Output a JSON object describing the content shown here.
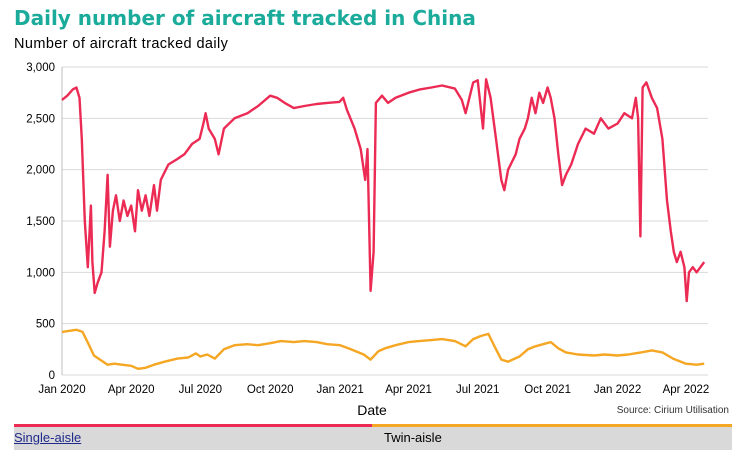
{
  "title": "Daily number of aircraft tracked in China",
  "subtitle": "Number of aircraft tracked daily",
  "source": "Source: Cirium Utilisation",
  "colors": {
    "title": "#1aab9b",
    "single_aisle": "#ec2b54",
    "twin_aisle": "#f5a623",
    "legend_bg": "#d9d9d9"
  },
  "chart_data": {
    "type": "line",
    "title": "Daily number of aircraft tracked in China",
    "subtitle": "Number of aircraft tracked daily",
    "xlabel": "Date",
    "ylabel": "",
    "ylim": [
      0,
      3000
    ],
    "yticks": [
      "0",
      "500",
      "1,000",
      "1,500",
      "2,000",
      "2,500",
      "3,000"
    ],
    "xlim": [
      "2020-01-01",
      "2022-04-30"
    ],
    "xticks": [
      "Jan 2020",
      "Apr 2020",
      "Jul 2020",
      "Oct 2020",
      "Jan 2021",
      "Apr 2021",
      "Jul 2021",
      "Oct 2021",
      "Jan 2022",
      "Apr 2022"
    ],
    "grid": "horizontal",
    "legend": "bottom",
    "series": [
      {
        "name": "Single-aisle",
        "color": "#ec2b54",
        "points": [
          [
            "2020-01-01",
            2680
          ],
          [
            "2020-01-08",
            2720
          ],
          [
            "2020-01-15",
            2780
          ],
          [
            "2020-01-20",
            2800
          ],
          [
            "2020-01-24",
            2700
          ],
          [
            "2020-01-27",
            2300
          ],
          [
            "2020-01-31",
            1500
          ],
          [
            "2020-02-04",
            1050
          ],
          [
            "2020-02-08",
            1650
          ],
          [
            "2020-02-10",
            1100
          ],
          [
            "2020-02-13",
            800
          ],
          [
            "2020-02-17",
            900
          ],
          [
            "2020-02-22",
            1000
          ],
          [
            "2020-02-26",
            1400
          ],
          [
            "2020-03-01",
            1950
          ],
          [
            "2020-03-04",
            1250
          ],
          [
            "2020-03-08",
            1600
          ],
          [
            "2020-03-12",
            1750
          ],
          [
            "2020-03-17",
            1500
          ],
          [
            "2020-03-22",
            1700
          ],
          [
            "2020-03-27",
            1550
          ],
          [
            "2020-04-01",
            1650
          ],
          [
            "2020-04-06",
            1400
          ],
          [
            "2020-04-10",
            1800
          ],
          [
            "2020-04-15",
            1600
          ],
          [
            "2020-04-20",
            1750
          ],
          [
            "2020-04-25",
            1550
          ],
          [
            "2020-05-01",
            1850
          ],
          [
            "2020-05-05",
            1600
          ],
          [
            "2020-05-10",
            1900
          ],
          [
            "2020-05-20",
            2050
          ],
          [
            "2020-05-31",
            2100
          ],
          [
            "2020-06-10",
            2150
          ],
          [
            "2020-06-20",
            2250
          ],
          [
            "2020-06-30",
            2300
          ],
          [
            "2020-07-05",
            2450
          ],
          [
            "2020-07-08",
            2550
          ],
          [
            "2020-07-12",
            2400
          ],
          [
            "2020-07-20",
            2300
          ],
          [
            "2020-07-25",
            2150
          ],
          [
            "2020-08-01",
            2400
          ],
          [
            "2020-08-15",
            2500
          ],
          [
            "2020-09-01",
            2550
          ],
          [
            "2020-09-15",
            2620
          ],
          [
            "2020-10-01",
            2720
          ],
          [
            "2020-10-10",
            2700
          ],
          [
            "2020-10-20",
            2650
          ],
          [
            "2020-11-01",
            2600
          ],
          [
            "2020-11-15",
            2620
          ],
          [
            "2020-12-01",
            2640
          ],
          [
            "2020-12-15",
            2650
          ],
          [
            "2020-12-31",
            2660
          ],
          [
            "2021-01-05",
            2700
          ],
          [
            "2021-01-10",
            2580
          ],
          [
            "2021-01-20",
            2400
          ],
          [
            "2021-01-28",
            2200
          ],
          [
            "2021-02-03",
            1900
          ],
          [
            "2021-02-06",
            2200
          ],
          [
            "2021-02-10",
            820
          ],
          [
            "2021-02-14",
            1200
          ],
          [
            "2021-02-17",
            2650
          ],
          [
            "2021-02-25",
            2720
          ],
          [
            "2021-03-05",
            2650
          ],
          [
            "2021-03-15",
            2700
          ],
          [
            "2021-04-01",
            2750
          ],
          [
            "2021-04-15",
            2780
          ],
          [
            "2021-05-01",
            2800
          ],
          [
            "2021-05-15",
            2820
          ],
          [
            "2021-06-01",
            2790
          ],
          [
            "2021-06-10",
            2680
          ],
          [
            "2021-06-15",
            2550
          ],
          [
            "2021-06-20",
            2700
          ],
          [
            "2021-06-25",
            2850
          ],
          [
            "2021-07-01",
            2870
          ],
          [
            "2021-07-05",
            2600
          ],
          [
            "2021-07-08",
            2400
          ],
          [
            "2021-07-12",
            2880
          ],
          [
            "2021-07-18",
            2700
          ],
          [
            "2021-07-25",
            2300
          ],
          [
            "2021-08-01",
            1900
          ],
          [
            "2021-08-05",
            1800
          ],
          [
            "2021-08-10",
            2000
          ],
          [
            "2021-08-20",
            2150
          ],
          [
            "2021-08-25",
            2300
          ],
          [
            "2021-09-01",
            2400
          ],
          [
            "2021-09-05",
            2500
          ],
          [
            "2021-09-10",
            2700
          ],
          [
            "2021-09-15",
            2550
          ],
          [
            "2021-09-20",
            2750
          ],
          [
            "2021-09-25",
            2650
          ],
          [
            "2021-10-01",
            2800
          ],
          [
            "2021-10-05",
            2700
          ],
          [
            "2021-10-10",
            2500
          ],
          [
            "2021-10-15",
            2150
          ],
          [
            "2021-10-20",
            1850
          ],
          [
            "2021-10-25",
            1950
          ],
          [
            "2021-11-01",
            2050
          ],
          [
            "2021-11-10",
            2250
          ],
          [
            "2021-11-20",
            2400
          ],
          [
            "2021-12-01",
            2350
          ],
          [
            "2021-12-10",
            2500
          ],
          [
            "2021-12-20",
            2400
          ],
          [
            "2022-01-01",
            2450
          ],
          [
            "2022-01-10",
            2550
          ],
          [
            "2022-01-20",
            2500
          ],
          [
            "2022-01-25",
            2700
          ],
          [
            "2022-01-28",
            2500
          ],
          [
            "2022-01-31",
            1350
          ],
          [
            "2022-02-03",
            2800
          ],
          [
            "2022-02-08",
            2850
          ],
          [
            "2022-02-15",
            2700
          ],
          [
            "2022-02-22",
            2600
          ],
          [
            "2022-03-01",
            2300
          ],
          [
            "2022-03-07",
            1700
          ],
          [
            "2022-03-12",
            1400
          ],
          [
            "2022-03-16",
            1200
          ],
          [
            "2022-03-20",
            1100
          ],
          [
            "2022-03-25",
            1200
          ],
          [
            "2022-03-30",
            1050
          ],
          [
            "2022-04-02",
            720
          ],
          [
            "2022-04-05",
            1000
          ],
          [
            "2022-04-10",
            1050
          ],
          [
            "2022-04-15",
            1000
          ],
          [
            "2022-04-20",
            1050
          ],
          [
            "2022-04-25",
            1100
          ]
        ]
      },
      {
        "name": "Twin-aisle",
        "color": "#f5a623",
        "points": [
          [
            "2020-01-01",
            420
          ],
          [
            "2020-01-10",
            430
          ],
          [
            "2020-01-20",
            440
          ],
          [
            "2020-01-28",
            420
          ],
          [
            "2020-02-05",
            300
          ],
          [
            "2020-02-12",
            190
          ],
          [
            "2020-02-20",
            150
          ],
          [
            "2020-03-01",
            100
          ],
          [
            "2020-03-10",
            110
          ],
          [
            "2020-03-20",
            100
          ],
          [
            "2020-04-01",
            90
          ],
          [
            "2020-04-10",
            60
          ],
          [
            "2020-04-20",
            70
          ],
          [
            "2020-05-01",
            100
          ],
          [
            "2020-05-15",
            130
          ],
          [
            "2020-06-01",
            160
          ],
          [
            "2020-06-15",
            170
          ],
          [
            "2020-06-25",
            210
          ],
          [
            "2020-07-01",
            180
          ],
          [
            "2020-07-10",
            200
          ],
          [
            "2020-07-20",
            160
          ],
          [
            "2020-08-01",
            250
          ],
          [
            "2020-08-15",
            290
          ],
          [
            "2020-09-01",
            300
          ],
          [
            "2020-09-15",
            290
          ],
          [
            "2020-10-01",
            310
          ],
          [
            "2020-10-15",
            330
          ],
          [
            "2020-11-01",
            320
          ],
          [
            "2020-11-15",
            330
          ],
          [
            "2020-12-01",
            320
          ],
          [
            "2020-12-15",
            300
          ],
          [
            "2021-01-01",
            290
          ],
          [
            "2021-01-15",
            250
          ],
          [
            "2021-02-01",
            200
          ],
          [
            "2021-02-10",
            150
          ],
          [
            "2021-02-20",
            230
          ],
          [
            "2021-03-01",
            260
          ],
          [
            "2021-03-15",
            290
          ],
          [
            "2021-04-01",
            320
          ],
          [
            "2021-04-15",
            330
          ],
          [
            "2021-05-01",
            340
          ],
          [
            "2021-05-15",
            350
          ],
          [
            "2021-06-01",
            330
          ],
          [
            "2021-06-15",
            280
          ],
          [
            "2021-06-25",
            350
          ],
          [
            "2021-07-05",
            380
          ],
          [
            "2021-07-15",
            400
          ],
          [
            "2021-07-25",
            250
          ],
          [
            "2021-08-01",
            150
          ],
          [
            "2021-08-10",
            130
          ],
          [
            "2021-08-25",
            180
          ],
          [
            "2021-09-05",
            250
          ],
          [
            "2021-09-15",
            280
          ],
          [
            "2021-09-25",
            300
          ],
          [
            "2021-10-05",
            320
          ],
          [
            "2021-10-15",
            260
          ],
          [
            "2021-10-25",
            220
          ],
          [
            "2021-11-10",
            200
          ],
          [
            "2021-12-01",
            190
          ],
          [
            "2021-12-15",
            200
          ],
          [
            "2022-01-01",
            190
          ],
          [
            "2022-01-15",
            200
          ],
          [
            "2022-02-01",
            220
          ],
          [
            "2022-02-15",
            240
          ],
          [
            "2022-03-01",
            220
          ],
          [
            "2022-03-15",
            160
          ],
          [
            "2022-04-01",
            110
          ],
          [
            "2022-04-15",
            100
          ],
          [
            "2022-04-25",
            110
          ]
        ]
      }
    ]
  }
}
